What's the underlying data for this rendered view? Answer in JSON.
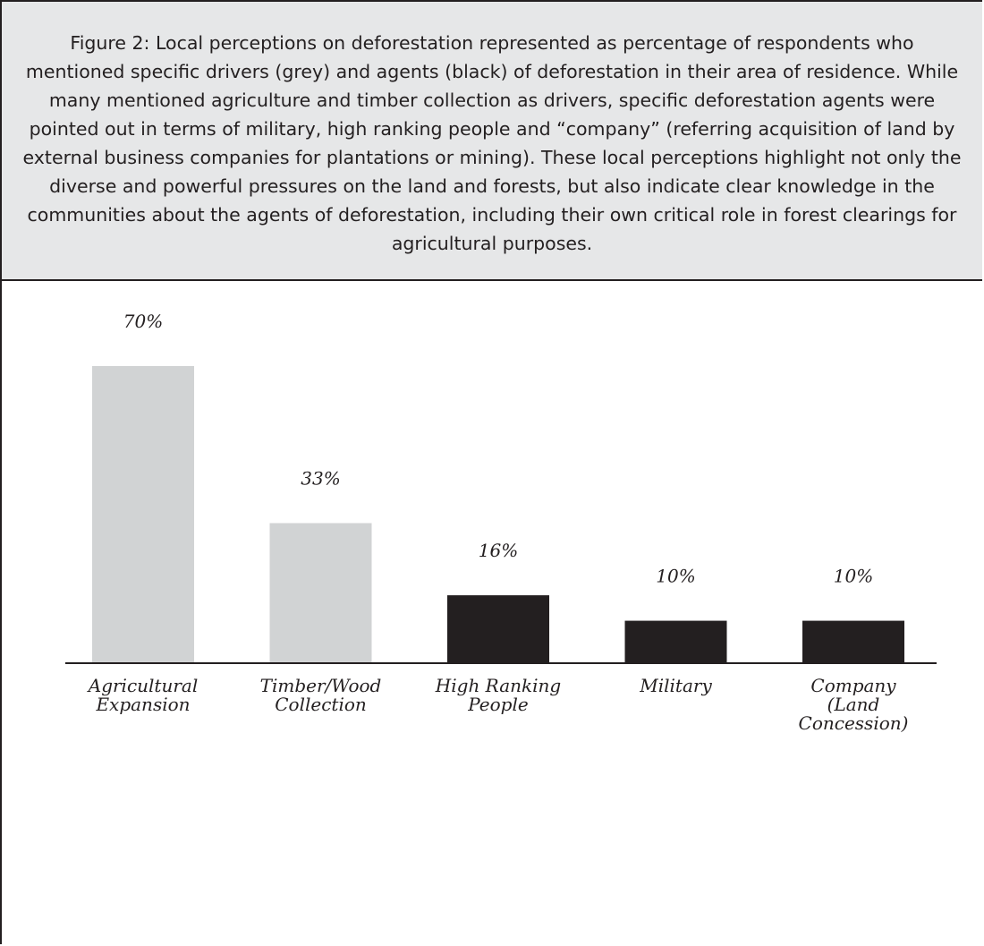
{
  "caption": "Figure 2: Local perceptions on deforestation represented as percentage of respondents who mentioned specific drivers (grey) and agents (black) of deforestation in their area of residence. While many mentioned agriculture and timber collection as drivers, specific deforestation agents were pointed out in terms of military, high ranking people and “company” (referring acquisition of land by external business companies for plantations or mining). These local perceptions highlight not only the diverse and powerful pressures on the land and forests, but also indicate clear knowledge in the communities about the agents of deforestation, including their own critical role in forest clearings for agricultural purposes.",
  "chart_data": {
    "type": "bar",
    "title": "",
    "xlabel": "",
    "ylabel": "",
    "ylim": [
      0,
      70
    ],
    "grid": false,
    "categories": [
      "Agricultural Expansion",
      "Timber/Wood Collection",
      "High Ranking People",
      "Military",
      "Company (Land Concession)"
    ],
    "category_label_lines": [
      [
        "Agricultural",
        "Expansion"
      ],
      [
        "Timber/Wood",
        "Collection"
      ],
      [
        "High Ranking",
        "People"
      ],
      [
        "Military"
      ],
      [
        "Company",
        "(Land",
        "Concession)"
      ]
    ],
    "values": [
      70,
      33,
      16,
      10,
      10
    ],
    "value_labels": [
      "70%",
      "33%",
      "16%",
      "10%",
      "10%"
    ],
    "groups": [
      "driver",
      "driver",
      "agent",
      "agent",
      "agent"
    ],
    "colors": {
      "driver": "#d1d3d4",
      "agent": "#231f20",
      "axis": "#231f20"
    }
  }
}
